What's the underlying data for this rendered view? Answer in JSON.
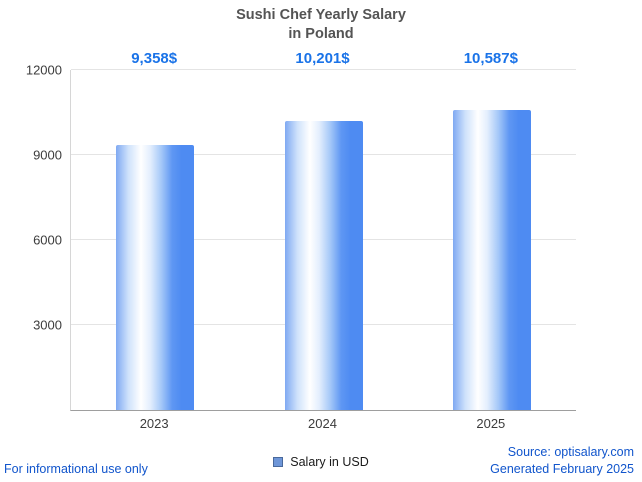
{
  "title": {
    "line1": "Sushi Chef Yearly Salary",
    "line2": "in Poland"
  },
  "chart_data": {
    "type": "bar",
    "title": "Sushi Chef Yearly Salary in Poland",
    "categories": [
      "2023",
      "2024",
      "2025"
    ],
    "values": [
      9358,
      10201,
      10587
    ],
    "value_labels": [
      "9,358$",
      "10,201$",
      "10,587$"
    ],
    "ylim": [
      0,
      12000
    ],
    "yticks": [
      3000,
      6000,
      9000,
      12000
    ],
    "grid": true,
    "legend": "Salary in USD",
    "legend_position": "bottom",
    "xlabel": "",
    "ylabel": ""
  },
  "footer": {
    "left": "For informational use only",
    "source": "Source: optisalary.com",
    "generated": "Generated February 2025"
  },
  "colors": {
    "bar_blue": "#4e8bf2",
    "bar_highlight": "#ffffff",
    "value_label_blue": "#1a73e8",
    "footer_link_blue": "#1155cc",
    "gridline_gray": "#e4e4e4",
    "axis_gray": "#9e9e9e",
    "title_gray": "#545454",
    "legend_swatch_blue": "#6e96d8"
  }
}
